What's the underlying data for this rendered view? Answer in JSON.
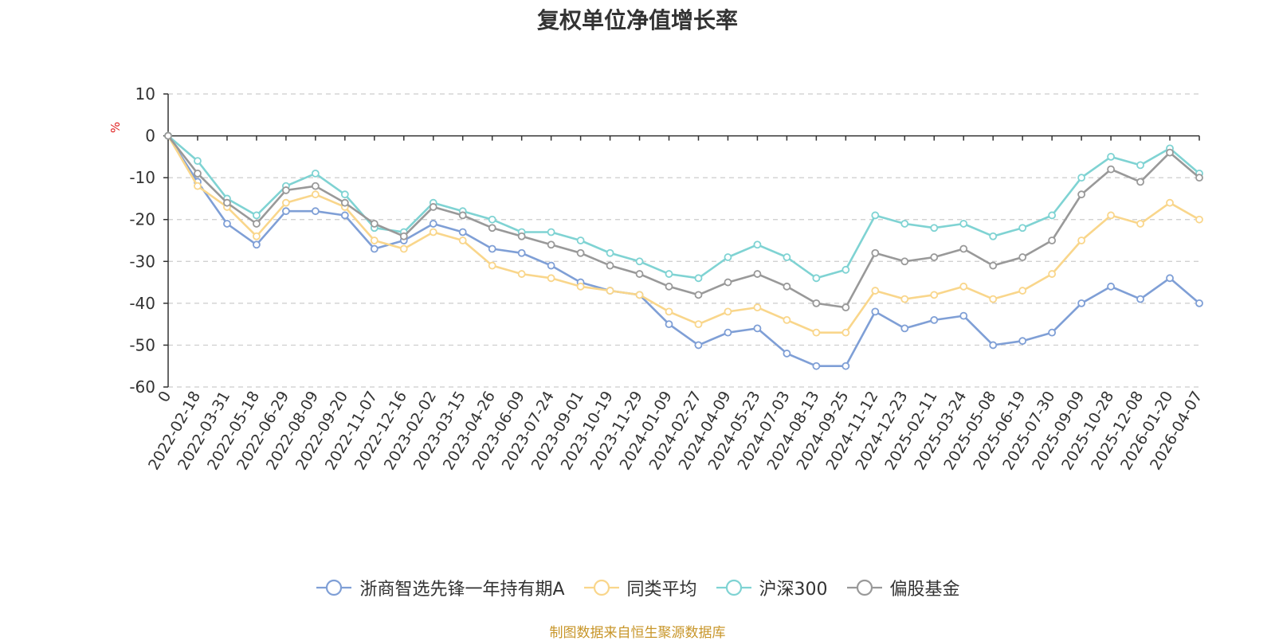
{
  "chart_data": {
    "type": "line",
    "title": "复权单位净值增长率",
    "ylabel": "%",
    "xlabel": "",
    "ylim": [
      -60,
      10
    ],
    "yticks": [
      10,
      0,
      -10,
      -20,
      -30,
      -40,
      -50,
      -60
    ],
    "grid": true,
    "legend_position": "bottom-center",
    "source": "制图数据来自恒生聚源数据库",
    "categories": [
      "0",
      "2022-02-18",
      "2022-03-31",
      "2022-05-18",
      "2022-06-29",
      "2022-08-09",
      "2022-09-20",
      "2022-11-07",
      "2022-12-16",
      "2023-02-02",
      "2023-03-15",
      "2023-04-26",
      "2023-06-09",
      "2023-07-24",
      "2023-09-01",
      "2023-10-19",
      "2023-11-29",
      "2024-01-09",
      "2024-02-27",
      "2024-04-09",
      "2024-05-23",
      "2024-07-03",
      "2024-08-13",
      "2024-09-25",
      "2024-11-12",
      "2024-12-23",
      "2025-02-11",
      "2025-03-24",
      "2025-05-08",
      "2025-06-19",
      "2025-07-30",
      "2025-09-09",
      "2025-10-28",
      "2025-12-08",
      "2026-01-20",
      "2026-04-07"
    ],
    "series": [
      {
        "name": "浙商智选先锋一年持有期A",
        "color": "#7f9fd6",
        "values": [
          0,
          -11,
          -21,
          -26,
          -18,
          -18,
          -19,
          -27,
          -25,
          -21,
          -23,
          -27,
          -28,
          -31,
          -35,
          -37,
          -38,
          -45,
          -50,
          -47,
          -46,
          -52,
          -55,
          -55,
          -42,
          -46,
          -44,
          -43,
          -50,
          -49,
          -47,
          -40,
          -36,
          -39,
          -34,
          -40
        ]
      },
      {
        "name": "同类平均",
        "color": "#f9d68b",
        "values": [
          0,
          -12,
          -17,
          -24,
          -16,
          -14,
          -17,
          -25,
          -27,
          -23,
          -25,
          -31,
          -33,
          -34,
          -36,
          -37,
          -38,
          -42,
          -45,
          -42,
          -41,
          -44,
          -47,
          -47,
          -37,
          -39,
          -38,
          -36,
          -39,
          -37,
          -33,
          -25,
          -19,
          -21,
          -16,
          -20
        ]
      },
      {
        "name": "沪深300",
        "color": "#7fd3d3",
        "values": [
          0,
          -6,
          -15,
          -19,
          -12,
          -9,
          -14,
          -22,
          -23,
          -16,
          -18,
          -20,
          -23,
          -23,
          -25,
          -28,
          -30,
          -33,
          -34,
          -29,
          -26,
          -29,
          -34,
          -32,
          -19,
          -21,
          -22,
          -21,
          -24,
          -22,
          -19,
          -10,
          -5,
          -7,
          -3,
          -9
        ]
      },
      {
        "name": "偏股基金",
        "color": "#999999",
        "values": [
          0,
          -9,
          -16,
          -21,
          -13,
          -12,
          -16,
          -21,
          -24,
          -17,
          -19,
          -22,
          -24,
          -26,
          -28,
          -31,
          -33,
          -36,
          -38,
          -35,
          -33,
          -36,
          -40,
          -41,
          -28,
          -30,
          -29,
          -27,
          -31,
          -29,
          -25,
          -14,
          -8,
          -11,
          -4,
          -10
        ]
      }
    ]
  }
}
